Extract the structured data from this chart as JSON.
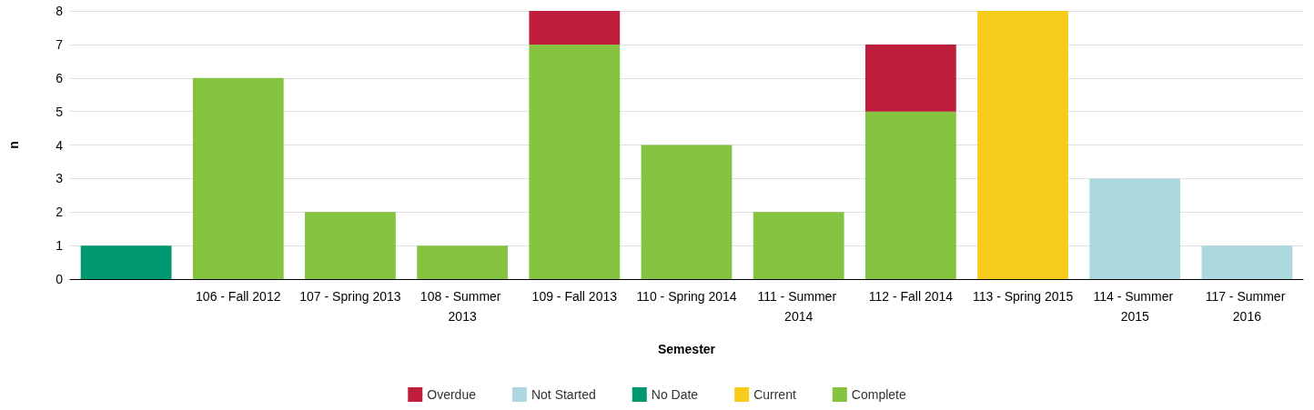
{
  "chart_data": {
    "type": "bar",
    "xlabel": "Semester",
    "ylabel": "n",
    "stacked": true,
    "categories": [
      null,
      "106 - Fall 2012",
      "107 - Spring 2013",
      "108 - Summer 2013",
      "109 - Fall 2013",
      "110 - Spring 2014",
      "111 - Summer 2014",
      "112 - Fall 2014",
      "113 - Spring 2015",
      "114 - Summer 2015",
      "117 - Summer 2016"
    ],
    "series": [
      {
        "name": "Complete",
        "color": "#84c441",
        "values": [
          null,
          6,
          2,
          1,
          7,
          4,
          2,
          5,
          null,
          null,
          null
        ]
      },
      {
        "name": "Current",
        "color": "#f8cc1b",
        "values": [
          null,
          null,
          null,
          null,
          null,
          null,
          null,
          null,
          8,
          null,
          null
        ]
      },
      {
        "name": "No Date",
        "color": "#009870",
        "values": [
          1,
          null,
          null,
          null,
          null,
          null,
          null,
          null,
          null,
          null,
          null
        ]
      },
      {
        "name": "Not Started",
        "color": "#add8e0",
        "values": [
          null,
          null,
          null,
          null,
          null,
          null,
          null,
          null,
          null,
          3,
          1
        ]
      },
      {
        "name": "Overdue",
        "color": "#be1e3c",
        "values": [
          null,
          null,
          null,
          null,
          1,
          null,
          null,
          2,
          null,
          null,
          null
        ]
      }
    ],
    "ylim": [
      0,
      8
    ],
    "yticks": [
      0,
      1,
      2,
      3,
      4,
      5,
      6,
      7,
      8
    ],
    "grid": "y",
    "legend": "bottom"
  }
}
